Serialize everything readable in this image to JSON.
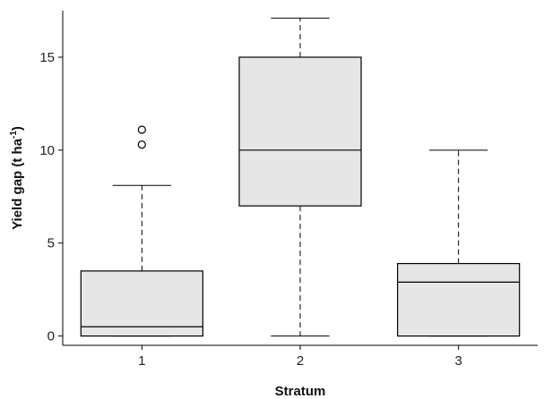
{
  "chart_data": {
    "type": "box",
    "xlabel": "Stratum",
    "ylabel": "Yield gap (t ha",
    "ylabel_sup": "-1",
    "ylabel_close": ")",
    "ylim": [
      -0.5,
      17.5
    ],
    "yticks": [
      0,
      5,
      10,
      15
    ],
    "categories": [
      "1",
      "2",
      "3"
    ],
    "series": [
      {
        "category": "1",
        "whisker_low": 0,
        "q1": 0,
        "median": 0.5,
        "q3": 3.5,
        "whisker_high": 8.1,
        "outliers": [
          10.3,
          11.1
        ]
      },
      {
        "category": "2",
        "whisker_low": 0,
        "q1": 7,
        "median": 10,
        "q3": 15,
        "whisker_high": 17.1,
        "outliers": []
      },
      {
        "category": "3",
        "whisker_low": 0,
        "q1": 0,
        "median": 2.9,
        "q3": 3.9,
        "whisker_high": 10,
        "outliers": []
      }
    ],
    "box_fill": "#e6e6e6",
    "grid": false
  }
}
